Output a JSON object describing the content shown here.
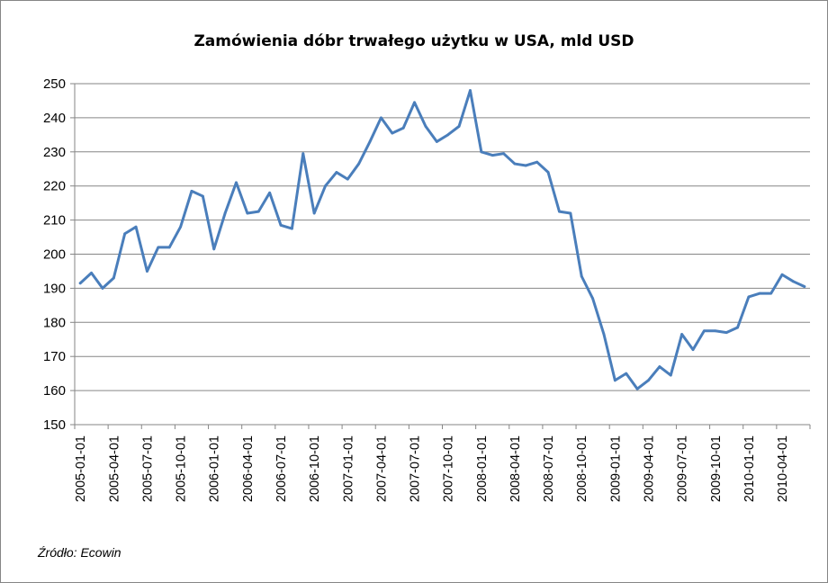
{
  "chart_data": {
    "type": "line",
    "title": "Zamówienia dóbr trwałego użytku w USA, mld USD",
    "xlabel": "",
    "ylabel": "",
    "ylim": [
      150,
      250
    ],
    "y_ticks": [
      150,
      160,
      170,
      180,
      190,
      200,
      210,
      220,
      230,
      240,
      250
    ],
    "grid": true,
    "legend": "none",
    "x_tick_labels": [
      "2005-01-01",
      "2005-04-01",
      "2005-07-01",
      "2005-10-01",
      "2006-01-01",
      "2006-04-01",
      "2006-07-01",
      "2006-10-01",
      "2007-01-01",
      "2007-04-01",
      "2007-07-01",
      "2007-10-01",
      "2008-01-01",
      "2008-04-01",
      "2008-07-01",
      "2008-10-01",
      "2009-01-01",
      "2009-04-01",
      "2009-07-01",
      "2009-10-01",
      "2010-01-01",
      "2010-04-01"
    ],
    "x": [
      "2005-01",
      "2005-02",
      "2005-03",
      "2005-04",
      "2005-05",
      "2005-06",
      "2005-07",
      "2005-08",
      "2005-09",
      "2005-10",
      "2005-11",
      "2005-12",
      "2006-01",
      "2006-02",
      "2006-03",
      "2006-04",
      "2006-05",
      "2006-06",
      "2006-07",
      "2006-08",
      "2006-09",
      "2006-10",
      "2006-11",
      "2006-12",
      "2007-01",
      "2007-02",
      "2007-03",
      "2007-04",
      "2007-05",
      "2007-06",
      "2007-07",
      "2007-08",
      "2007-09",
      "2007-10",
      "2007-11",
      "2007-12",
      "2008-01",
      "2008-02",
      "2008-03",
      "2008-04",
      "2008-05",
      "2008-06",
      "2008-07",
      "2008-08",
      "2008-09",
      "2008-10",
      "2008-11",
      "2008-12",
      "2009-01",
      "2009-02",
      "2009-03",
      "2009-04",
      "2009-05",
      "2009-06",
      "2009-07",
      "2009-08",
      "2009-09",
      "2009-10",
      "2009-11",
      "2009-12",
      "2010-01",
      "2010-02",
      "2010-03",
      "2010-04",
      "2010-05",
      "2010-06"
    ],
    "series": [
      {
        "color": "#4a7ebb",
        "values": [
          191.5,
          194.5,
          190,
          193,
          206,
          208,
          195,
          202,
          202,
          208,
          218.5,
          217,
          201.5,
          212,
          221,
          212,
          212.5,
          218,
          208.5,
          207.5,
          229.5,
          212,
          220,
          224,
          222,
          226.5,
          233,
          240,
          235.5,
          237,
          244.5,
          237.5,
          233,
          235,
          237.5,
          248,
          230,
          229,
          229.5,
          226.5,
          226,
          227,
          224,
          212.5,
          212,
          193.5,
          187,
          176.5,
          163,
          165,
          160.5,
          163,
          167,
          164.5,
          176.5,
          172,
          177.5,
          177.5,
          177,
          178.5,
          187.5,
          188.5,
          188.5,
          194,
          192,
          190.5
        ]
      }
    ]
  },
  "source": "Źródło: Ecowin"
}
